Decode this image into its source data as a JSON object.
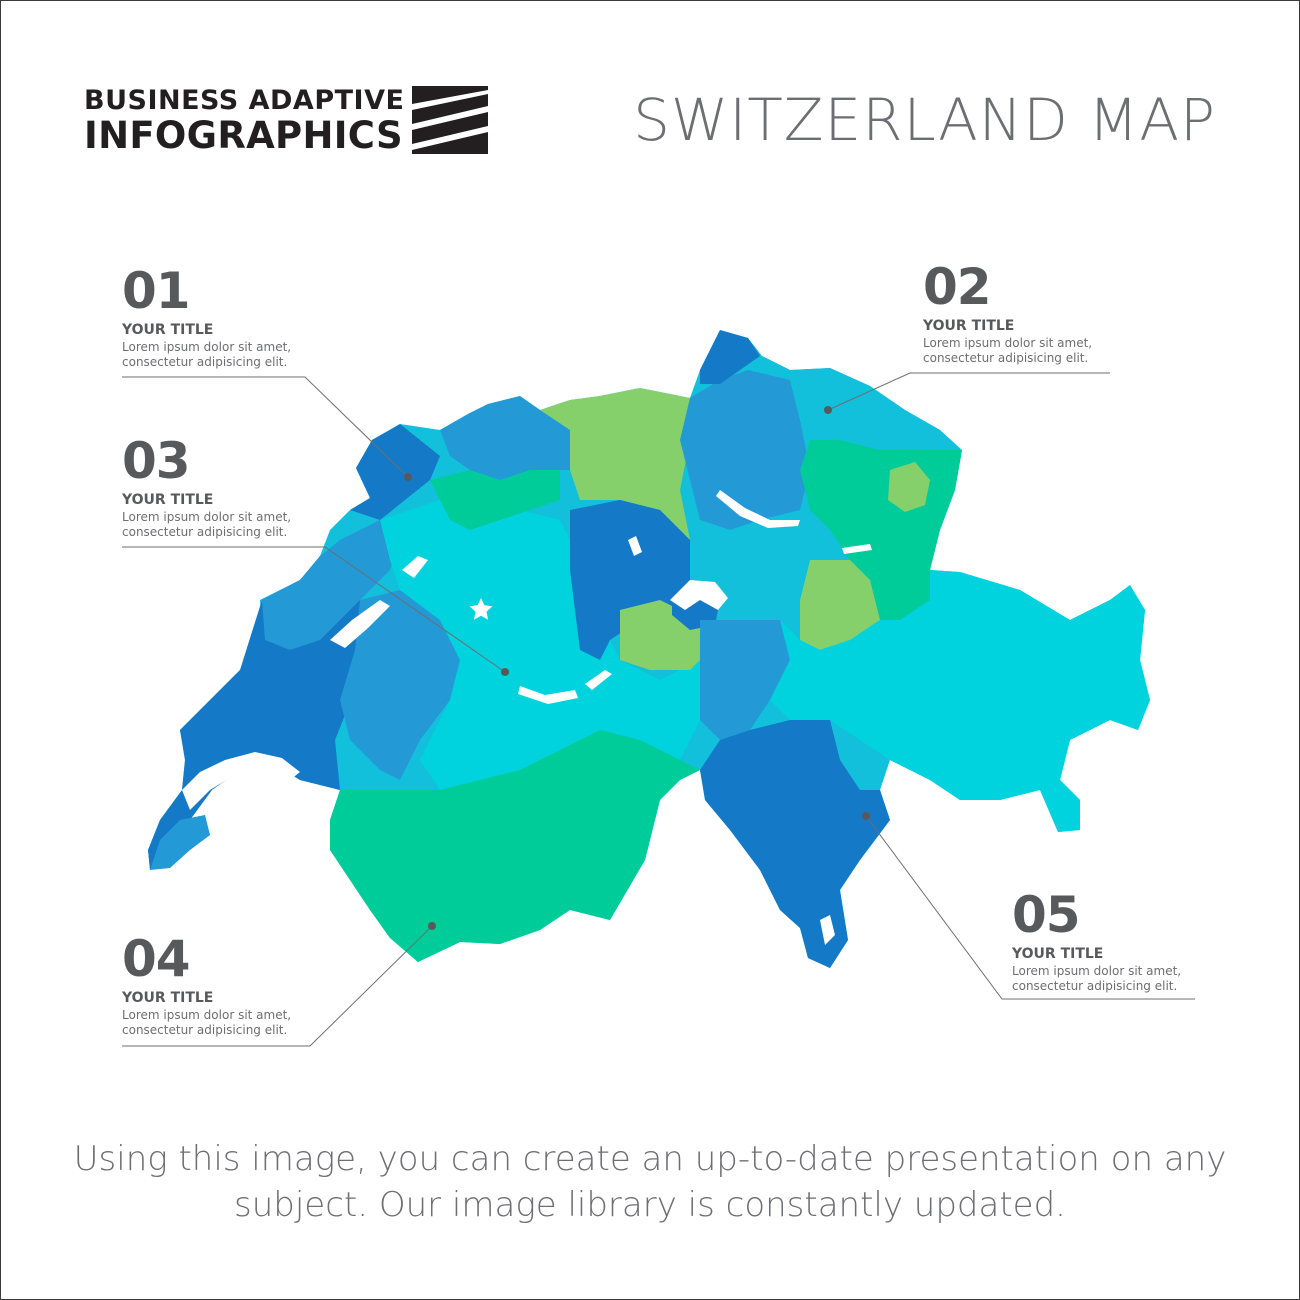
{
  "header": {
    "brand_line1": "BUSINESS ADAPTIVE",
    "brand_line2": "INFOGRAPHICS",
    "title": "SWITZERLAND MAP"
  },
  "colors": {
    "dark_blue": "#1479c6",
    "mid_blue": "#2399d6",
    "cyan": "#00d2de",
    "light_cyan": "#12c0dc",
    "green": "#00cc9a",
    "light_green": "#85d06b",
    "text": "#58595b",
    "leader_line": "#6d6e71"
  },
  "map": {
    "country": "Switzerland",
    "capital_marker": "star-icon",
    "marker_style": "dot"
  },
  "callouts": [
    {
      "number": "01",
      "title": "YOUR TITLE",
      "text": "Lorem ipsum dolor sit amet, consectetur adipisicing elit."
    },
    {
      "number": "02",
      "title": "YOUR TITLE",
      "text": "Lorem ipsum dolor sit amet, consectetur adipisicing elit."
    },
    {
      "number": "03",
      "title": "YOUR TITLE",
      "text": "Lorem ipsum dolor sit amet, consectetur adipisicing elit."
    },
    {
      "number": "04",
      "title": "YOUR TITLE",
      "text": "Lorem ipsum dolor sit amet, consectetur adipisicing elit."
    },
    {
      "number": "05",
      "title": "YOUR TITLE",
      "text": "Lorem ipsum dolor sit amet, consectetur adipisicing elit."
    }
  ],
  "footer": {
    "text": "Using this image, you can create an up-to-date presentation on any subject. Our image library is constantly updated."
  }
}
